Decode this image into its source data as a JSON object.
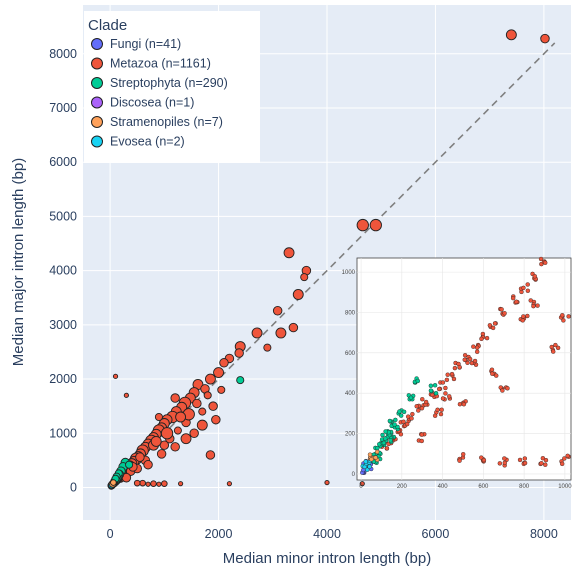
{
  "chart_data": {
    "type": "scatter",
    "title": "",
    "xlabel": "Median minor intron length (bp)",
    "ylabel": "Median major intron length (bp)",
    "xlim": [
      -500,
      8500
    ],
    "ylim": [
      -600,
      8900
    ],
    "x_ticks": [
      "0",
      "2000",
      "4000",
      "6000",
      "8000"
    ],
    "x_tick_values": [
      0,
      2000,
      4000,
      6000,
      8000
    ],
    "y_ticks": [
      "0",
      "1000",
      "2000",
      "3000",
      "4000",
      "5000",
      "6000",
      "7000",
      "8000"
    ],
    "y_tick_values": [
      0,
      1000,
      2000,
      3000,
      4000,
      5000,
      6000,
      7000,
      8000
    ],
    "grid": true,
    "background": "#E5ECF6",
    "reference_line": {
      "style": "dashed",
      "color": "#7f7f7f",
      "from": [
        0,
        0
      ],
      "to": [
        8200,
        8200
      ]
    },
    "legend": {
      "title": "Clade",
      "placement": "top-left",
      "entries": [
        {
          "label": "Fungi (n=41)",
          "color": "#636EFA"
        },
        {
          "label": "Metazoa (n=1161)",
          "color": "#EF553B"
        },
        {
          "label": "Streptophyta (n=290)",
          "color": "#00CC96"
        },
        {
          "label": "Discosea (n=1)",
          "color": "#AB63FA"
        },
        {
          "label": "Stramenopiles (n=7)",
          "color": "#FFA15A"
        },
        {
          "label": "Evosea (n=2)",
          "color": "#19D3F3"
        }
      ]
    },
    "series": [
      {
        "name": "Metazoa",
        "color": "#EF553B",
        "points": [
          [
            7400,
            8350,
            7
          ],
          [
            8020,
            8280,
            6
          ],
          [
            4900,
            4840,
            8
          ],
          [
            4660,
            4840,
            8
          ],
          [
            3300,
            4330,
            7
          ],
          [
            3620,
            4000,
            6
          ],
          [
            3580,
            3880,
            5
          ],
          [
            3470,
            3560,
            7
          ],
          [
            3090,
            3260,
            6
          ],
          [
            3380,
            2950,
            6
          ],
          [
            3150,
            2850,
            7
          ],
          [
            2710,
            2850,
            7
          ],
          [
            2900,
            2580,
            5
          ],
          [
            2400,
            2600,
            7
          ],
          [
            2380,
            2480,
            6
          ],
          [
            2200,
            2380,
            6
          ],
          [
            2100,
            2300,
            6
          ],
          [
            2000,
            2120,
            7
          ],
          [
            1850,
            2000,
            7
          ],
          [
            1620,
            1900,
            7
          ],
          [
            1750,
            1820,
            6
          ],
          [
            1550,
            1750,
            7
          ],
          [
            1480,
            1650,
            7
          ],
          [
            1380,
            1560,
            8
          ],
          [
            1900,
            1500,
            6
          ],
          [
            1320,
            1480,
            7
          ],
          [
            1220,
            1400,
            7
          ],
          [
            1150,
            1300,
            8
          ],
          [
            1050,
            1250,
            7
          ],
          [
            1000,
            1180,
            7
          ],
          [
            950,
            1100,
            7
          ],
          [
            900,
            1050,
            8
          ],
          [
            850,
            980,
            7
          ],
          [
            800,
            920,
            7
          ],
          [
            760,
            860,
            8
          ],
          [
            700,
            800,
            7
          ],
          [
            650,
            740,
            7
          ],
          [
            600,
            680,
            8
          ],
          [
            560,
            620,
            7
          ],
          [
            520,
            570,
            7
          ],
          [
            480,
            530,
            8
          ],
          [
            440,
            480,
            7
          ],
          [
            400,
            440,
            7
          ],
          [
            360,
            400,
            7
          ],
          [
            320,
            360,
            8
          ],
          [
            290,
            320,
            7
          ],
          [
            250,
            280,
            7
          ],
          [
            210,
            240,
            7
          ],
          [
            180,
            200,
            8
          ],
          [
            150,
            170,
            6
          ],
          [
            120,
            140,
            6
          ],
          [
            1100,
            900,
            6
          ],
          [
            1400,
            1200,
            6
          ],
          [
            1700,
            1400,
            5
          ],
          [
            1250,
            1050,
            5
          ],
          [
            2050,
            1800,
            5
          ],
          [
            1000,
            780,
            6
          ],
          [
            650,
            500,
            6
          ],
          [
            1200,
            1650,
            6
          ],
          [
            900,
            1300,
            5
          ],
          [
            1450,
            1350,
            8
          ],
          [
            1300,
            1300,
            7
          ],
          [
            1050,
            1000,
            8
          ],
          [
            800,
            780,
            7
          ],
          [
            1600,
            1550,
            6
          ],
          [
            850,
            850,
            7
          ],
          [
            550,
            560,
            6
          ],
          [
            380,
            300,
            6
          ],
          [
            1800,
            1700,
            5
          ],
          [
            1950,
            1250,
            6
          ],
          [
            1700,
            1150,
            7
          ],
          [
            1550,
            1000,
            6
          ],
          [
            1400,
            900,
            7
          ],
          [
            1850,
            600,
            6
          ],
          [
            1200,
            750,
            6
          ],
          [
            950,
            620,
            6
          ],
          [
            700,
            420,
            6
          ],
          [
            500,
            350,
            6
          ],
          [
            300,
            180,
            6
          ],
          [
            420,
            380,
            6
          ],
          [
            600,
            80,
            4
          ],
          [
            800,
            70,
            4
          ],
          [
            1000,
            70,
            4
          ],
          [
            700,
            60,
            3
          ],
          [
            900,
            60,
            3
          ],
          [
            500,
            80,
            4
          ],
          [
            1300,
            70,
            3
          ],
          [
            100,
            2050,
            3
          ],
          [
            300,
            1700,
            3
          ],
          [
            2200,
            70,
            3
          ],
          [
            4000,
            90,
            3
          ],
          [
            4650,
            70,
            3
          ]
        ]
      },
      {
        "name": "Streptophyta",
        "color": "#00CC96",
        "points": [
          [
            2400,
            1980,
            5
          ],
          [
            280,
            460,
            6
          ],
          [
            240,
            380,
            6
          ],
          [
            200,
            300,
            6
          ],
          [
            170,
            240,
            6
          ],
          [
            150,
            200,
            6
          ],
          [
            130,
            170,
            6
          ],
          [
            110,
            140,
            6
          ],
          [
            90,
            110,
            6
          ],
          [
            80,
            90,
            5
          ],
          [
            70,
            75,
            5
          ],
          [
            160,
            260,
            5
          ],
          [
            120,
            200,
            5
          ],
          [
            100,
            160,
            5
          ],
          [
            350,
            420,
            5
          ],
          [
            60,
            70,
            5
          ]
        ]
      },
      {
        "name": "Fungi",
        "color": "#636EFA",
        "points": [
          [
            30,
            40,
            5
          ],
          [
            20,
            20,
            4
          ],
          [
            40,
            60,
            4
          ]
        ]
      },
      {
        "name": "Evosea",
        "color": "#19D3F3",
        "points": [
          [
            25,
            35,
            5
          ],
          [
            35,
            50,
            5
          ]
        ]
      },
      {
        "name": "Stramenopiles",
        "color": "#FFA15A",
        "points": [
          [
            50,
            70,
            5
          ],
          [
            60,
            90,
            4
          ]
        ]
      }
    ],
    "inset": {
      "xlim": [
        -20,
        1030
      ],
      "ylim": [
        -30,
        1070
      ],
      "x_ticks": [
        "0",
        "200",
        "400",
        "600",
        "800",
        "1000"
      ],
      "x_tick_values": [
        0,
        200,
        400,
        600,
        800,
        1000
      ],
      "y_ticks": [
        "0",
        "200",
        "400",
        "600",
        "800",
        "1000"
      ],
      "y_tick_values": [
        0,
        200,
        400,
        600,
        800,
        1000
      ]
    }
  }
}
